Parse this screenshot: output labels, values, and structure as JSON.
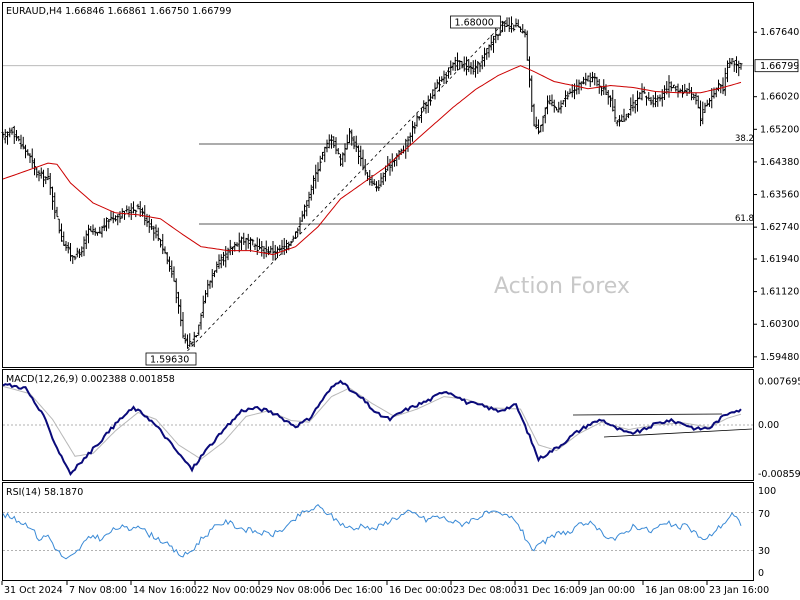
{
  "chart_data": [
    {
      "type": "line",
      "title": "EURAUD,H4  1.66846 1.66861 1.66750 1.66799",
      "symbol": "EURAUD",
      "timeframe": "H4",
      "ohlc": {
        "open": 1.66846,
        "high": 1.66861,
        "low": 1.6675,
        "close": 1.66799
      },
      "current_price_label": "1.66799",
      "watermark": "Action Forex",
      "ylim": [
        1.5925,
        1.6835
      ],
      "y_ticks": [
        "1.67640",
        "1.66020",
        "1.65200",
        "1.64380",
        "1.63560",
        "1.62740",
        "1.61940",
        "1.61120",
        "1.60300",
        "1.59480"
      ],
      "x_ticks": [
        "31 Oct 2024",
        "7 Nov 08:00",
        "14 Nov 16:00",
        "22 Nov 00:00",
        "29 Nov 08:00",
        "6 Dec 16:00",
        "16 Dec 00:00",
        "23 Dec 08:00",
        "31 Dec 16:00",
        "9 Jan 00:00",
        "16 Jan 08:00",
        "23 Jan 16:00"
      ],
      "annotations": {
        "high_label": "1.68000",
        "low_label": "1.59630",
        "fib_38": {
          "label": "38.2",
          "value": 1.6483
        },
        "fib_62": {
          "label": "61.8",
          "value": 1.6282
        }
      },
      "price_keypoints": [
        [
          0,
          1.65
        ],
        [
          4,
          1.652
        ],
        [
          8,
          1.648
        ],
        [
          11,
          1.646
        ],
        [
          15,
          1.641
        ],
        [
          20,
          1.6395
        ],
        [
          26,
          1.6245
        ],
        [
          30,
          1.6205
        ],
        [
          34,
          1.6205
        ],
        [
          38,
          1.6265
        ],
        [
          42,
          1.6255
        ],
        [
          47,
          1.6295
        ],
        [
          52,
          1.6305
        ],
        [
          56,
          1.6315
        ],
        [
          60,
          1.6325
        ],
        [
          64,
          1.629
        ],
        [
          68,
          1.626
        ],
        [
          72,
          1.621
        ],
        [
          76,
          1.614
        ],
        [
          80,
          1.6
        ],
        [
          82,
          1.5975
        ],
        [
          86,
          1.601
        ],
        [
          90,
          1.611
        ],
        [
          94,
          1.617
        ],
        [
          98,
          1.6195
        ],
        [
          102,
          1.6225
        ],
        [
          106,
          1.6245
        ],
        [
          110,
          1.6235
        ],
        [
          114,
          1.622
        ],
        [
          118,
          1.6215
        ],
        [
          122,
          1.6215
        ],
        [
          126,
          1.6225
        ],
        [
          130,
          1.626
        ],
        [
          134,
          1.632
        ],
        [
          138,
          1.639
        ],
        [
          142,
          1.646
        ],
        [
          146,
          1.65
        ],
        [
          150,
          1.644
        ],
        [
          154,
          1.651
        ],
        [
          158,
          1.646
        ],
        [
          162,
          1.64
        ],
        [
          166,
          1.637
        ],
        [
          170,
          1.6415
        ],
        [
          174,
          1.645
        ],
        [
          178,
          1.647
        ],
        [
          182,
          1.652
        ],
        [
          186,
          1.657
        ],
        [
          190,
          1.66
        ],
        [
          194,
          1.664
        ],
        [
          198,
          1.667
        ],
        [
          202,
          1.669
        ],
        [
          206,
          1.6675
        ],
        [
          210,
          1.667
        ],
        [
          214,
          1.6705
        ],
        [
          218,
          1.675
        ],
        [
          222,
          1.678
        ],
        [
          225,
          1.6775
        ],
        [
          228,
          1.678
        ],
        [
          232,
          1.6755
        ],
        [
          234,
          1.664
        ],
        [
          236,
          1.653
        ],
        [
          238,
          1.652
        ],
        [
          242,
          1.659
        ],
        [
          246,
          1.657
        ],
        [
          250,
          1.66
        ],
        [
          254,
          1.662
        ],
        [
          258,
          1.664
        ],
        [
          262,
          1.665
        ],
        [
          266,
          1.6625
        ],
        [
          270,
          1.66
        ],
        [
          272,
          1.654
        ],
        [
          276,
          1.655
        ],
        [
          280,
          1.658
        ],
        [
          284,
          1.661
        ],
        [
          288,
          1.659
        ],
        [
          292,
          1.66
        ],
        [
          296,
          1.663
        ],
        [
          300,
          1.662
        ],
        [
          304,
          1.6615
        ],
        [
          308,
          1.66
        ],
        [
          310,
          1.655
        ],
        [
          312,
          1.658
        ],
        [
          314,
          1.6595
        ],
        [
          316,
          1.661
        ],
        [
          318,
          1.6635
        ],
        [
          320,
          1.6625
        ],
        [
          322,
          1.668
        ],
        [
          324,
          1.6695
        ],
        [
          326,
          1.668
        ],
        [
          328,
          1.6685
        ]
      ],
      "ma_keypoints": [
        [
          0,
          1.6395
        ],
        [
          10,
          1.6415
        ],
        [
          20,
          1.6435
        ],
        [
          24,
          1.6432
        ],
        [
          30,
          1.6385
        ],
        [
          40,
          1.6335
        ],
        [
          50,
          1.631
        ],
        [
          60,
          1.6305
        ],
        [
          70,
          1.6295
        ],
        [
          80,
          1.6255
        ],
        [
          88,
          1.6225
        ],
        [
          100,
          1.6215
        ],
        [
          110,
          1.6215
        ],
        [
          120,
          1.6205
        ],
        [
          130,
          1.6225
        ],
        [
          140,
          1.6275
        ],
        [
          150,
          1.6345
        ],
        [
          160,
          1.6385
        ],
        [
          170,
          1.6425
        ],
        [
          180,
          1.6475
        ],
        [
          190,
          1.6525
        ],
        [
          200,
          1.6575
        ],
        [
          210,
          1.662
        ],
        [
          220,
          1.6655
        ],
        [
          230,
          1.668
        ],
        [
          236,
          1.6665
        ],
        [
          245,
          1.664
        ],
        [
          260,
          1.6622
        ],
        [
          270,
          1.663
        ],
        [
          280,
          1.6625
        ],
        [
          290,
          1.6615
        ],
        [
          300,
          1.6612
        ],
        [
          310,
          1.6612
        ],
        [
          320,
          1.6625
        ],
        [
          328,
          1.6638
        ]
      ],
      "high_index": 222,
      "low_index": 82
    },
    {
      "type": "line",
      "title": "MACD(12,26,9) 0.002388 0.001858",
      "ylim": [
        -0.0095,
        0.0095
      ],
      "y_ticks": [
        "0.007695",
        "0.00",
        "-0.008599"
      ],
      "series": [
        {
          "name": "MACD",
          "keypoints": [
            [
              0,
              0.0072
            ],
            [
              10,
              0.0065
            ],
            [
              18,
              0.0015
            ],
            [
              24,
              -0.004
            ],
            [
              30,
              -0.0085
            ],
            [
              36,
              -0.006
            ],
            [
              44,
              -0.0025
            ],
            [
              52,
              0.001
            ],
            [
              58,
              0.003
            ],
            [
              64,
              0.0015
            ],
            [
              70,
              -0.001
            ],
            [
              78,
              -0.005
            ],
            [
              84,
              -0.0078
            ],
            [
              90,
              -0.0045
            ],
            [
              98,
              -0.001
            ],
            [
              106,
              0.0025
            ],
            [
              112,
              0.003
            ],
            [
              118,
              0.0025
            ],
            [
              124,
              0.0012
            ],
            [
              130,
              -0.0002
            ],
            [
              136,
              0.001
            ],
            [
              142,
              0.0045
            ],
            [
              146,
              0.0065
            ],
            [
              150,
              0.008
            ],
            [
              154,
              0.0062
            ],
            [
              160,
              0.0045
            ],
            [
              166,
              0.002
            ],
            [
              172,
              0.001
            ],
            [
              178,
              0.0025
            ],
            [
              184,
              0.0035
            ],
            [
              190,
              0.0045
            ],
            [
              196,
              0.006
            ],
            [
              200,
              0.0055
            ],
            [
              206,
              0.004
            ],
            [
              212,
              0.0035
            ],
            [
              220,
              0.0025
            ],
            [
              228,
              0.0035
            ],
            [
              234,
              -0.002
            ],
            [
              238,
              -0.006
            ],
            [
              242,
              -0.005
            ],
            [
              248,
              -0.0035
            ],
            [
              254,
              -0.0015
            ],
            [
              260,
              0.0
            ],
            [
              266,
              0.001
            ],
            [
              272,
              -0.0005
            ],
            [
              278,
              -0.0015
            ],
            [
              284,
              -0.001
            ],
            [
              290,
              0.0002
            ],
            [
              296,
              0.0008
            ],
            [
              302,
              0.0003
            ],
            [
              308,
              -0.0007
            ],
            [
              314,
              -0.0005
            ],
            [
              320,
              0.0015
            ],
            [
              324,
              0.0025
            ],
            [
              328,
              0.0026
            ]
          ]
        },
        {
          "name": "Signal",
          "keypoints": [
            [
              0,
              0.0068
            ],
            [
              12,
              0.0055
            ],
            [
              22,
              0.001
            ],
            [
              32,
              -0.0055
            ],
            [
              40,
              -0.005
            ],
            [
              50,
              -0.001
            ],
            [
              60,
              0.0022
            ],
            [
              68,
              0.001
            ],
            [
              78,
              -0.0035
            ],
            [
              88,
              -0.006
            ],
            [
              98,
              -0.003
            ],
            [
              108,
              0.0015
            ],
            [
              118,
              0.0025
            ],
            [
              128,
              0.0008
            ],
            [
              136,
              0.0005
            ],
            [
              146,
              0.005
            ],
            [
              154,
              0.0065
            ],
            [
              164,
              0.0038
            ],
            [
              174,
              0.0015
            ],
            [
              184,
              0.0028
            ],
            [
              196,
              0.005
            ],
            [
              206,
              0.0045
            ],
            [
              218,
              0.003
            ],
            [
              230,
              0.0028
            ],
            [
              238,
              -0.0035
            ],
            [
              246,
              -0.0045
            ],
            [
              256,
              -0.0015
            ],
            [
              266,
              0.0005
            ],
            [
              278,
              -0.0008
            ],
            [
              290,
              0.0
            ],
            [
              302,
              0.0004
            ],
            [
              314,
              -0.0004
            ],
            [
              322,
              0.0012
            ],
            [
              328,
              0.0019
            ]
          ]
        }
      ]
    },
    {
      "type": "line",
      "title": "RSI(14) 58.1870",
      "ylim": [
        0,
        100
      ],
      "y_ticks": [
        "100",
        "70",
        "30",
        "0"
      ],
      "series": [
        {
          "name": "RSI",
          "keypoints": [
            [
              0,
              68
            ],
            [
              6,
              62
            ],
            [
              12,
              56
            ],
            [
              16,
              42
            ],
            [
              20,
              46
            ],
            [
              24,
              30
            ],
            [
              28,
              20
            ],
            [
              32,
              26
            ],
            [
              36,
              38
            ],
            [
              40,
              46
            ],
            [
              44,
              42
            ],
            [
              48,
              50
            ],
            [
              52,
              55
            ],
            [
              56,
              52
            ],
            [
              60,
              58
            ],
            [
              64,
              48
            ],
            [
              68,
              44
            ],
            [
              72,
              38
            ],
            [
              76,
              30
            ],
            [
              80,
              24
            ],
            [
              84,
              30
            ],
            [
              88,
              42
            ],
            [
              92,
              50
            ],
            [
              96,
              58
            ],
            [
              100,
              60
            ],
            [
              104,
              55
            ],
            [
              108,
              52
            ],
            [
              112,
              50
            ],
            [
              116,
              48
            ],
            [
              120,
              47
            ],
            [
              124,
              52
            ],
            [
              128,
              58
            ],
            [
              132,
              68
            ],
            [
              136,
              72
            ],
            [
              140,
              76
            ],
            [
              144,
              70
            ],
            [
              148,
              62
            ],
            [
              152,
              56
            ],
            [
              156,
              52
            ],
            [
              160,
              58
            ],
            [
              164,
              52
            ],
            [
              168,
              56
            ],
            [
              172,
              62
            ],
            [
              176,
              66
            ],
            [
              180,
              70
            ],
            [
              184,
              68
            ],
            [
              188,
              62
            ],
            [
              192,
              66
            ],
            [
              196,
              64
            ],
            [
              200,
              60
            ],
            [
              204,
              58
            ],
            [
              208,
              62
            ],
            [
              212,
              66
            ],
            [
              216,
              70
            ],
            [
              220,
              68
            ],
            [
              224,
              66
            ],
            [
              228,
              62
            ],
            [
              232,
              44
            ],
            [
              236,
              30
            ],
            [
              240,
              38
            ],
            [
              244,
              44
            ],
            [
              248,
              50
            ],
            [
              252,
              48
            ],
            [
              256,
              56
            ],
            [
              260,
              60
            ],
            [
              264,
              52
            ],
            [
              268,
              46
            ],
            [
              272,
              42
            ],
            [
              276,
              48
            ],
            [
              280,
              56
            ],
            [
              284,
              54
            ],
            [
              288,
              50
            ],
            [
              292,
              56
            ],
            [
              296,
              58
            ],
            [
              300,
              54
            ],
            [
              304,
              56
            ],
            [
              308,
              48
            ],
            [
              312,
              40
            ],
            [
              316,
              50
            ],
            [
              320,
              58
            ],
            [
              324,
              68
            ],
            [
              328,
              58
            ]
          ]
        }
      ]
    }
  ]
}
